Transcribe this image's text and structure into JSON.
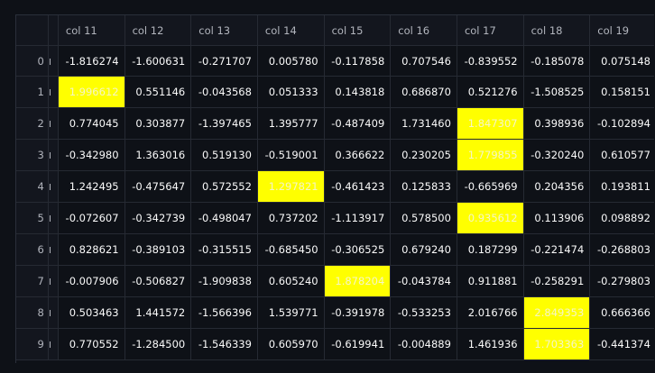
{
  "grid": {
    "columns": [
      "col 11",
      "col 12",
      "col 13",
      "col 14",
      "col 15",
      "col 16",
      "col 17",
      "col 18",
      "col 19"
    ],
    "highlight_color": "#ffff00",
    "rows": [
      {
        "index": "0",
        "cells": [
          "-1.816274",
          "-1.600631",
          "-0.271707",
          "0.005780",
          "-0.117858",
          "0.707546",
          "-0.839552",
          "-0.185078",
          "0.075148"
        ],
        "highlight_col": -1
      },
      {
        "index": "1",
        "cells": [
          "1.996612",
          "0.551146",
          "-0.043568",
          "0.051333",
          "0.143818",
          "0.686870",
          "0.521276",
          "-1.508525",
          "0.158151"
        ],
        "highlight_col": 0
      },
      {
        "index": "2",
        "cells": [
          "0.774045",
          "0.303877",
          "-1.397465",
          "1.395777",
          "-0.487409",
          "1.731460",
          "1.847307",
          "0.398936",
          "-0.102894"
        ],
        "highlight_col": 6
      },
      {
        "index": "3",
        "cells": [
          "-0.342980",
          "1.363016",
          "0.519130",
          "-0.519001",
          "0.366622",
          "0.230205",
          "1.779855",
          "-0.320240",
          "0.610577"
        ],
        "highlight_col": 6
      },
      {
        "index": "4",
        "cells": [
          "1.242495",
          "-0.475647",
          "0.572552",
          "1.297821",
          "-0.461423",
          "0.125833",
          "-0.665969",
          "0.204356",
          "0.193811"
        ],
        "highlight_col": 3
      },
      {
        "index": "5",
        "cells": [
          "-0.072607",
          "-0.342739",
          "-0.498047",
          "0.737202",
          "-1.113917",
          "0.578500",
          "0.935612",
          "0.113906",
          "0.098892"
        ],
        "highlight_col": 6
      },
      {
        "index": "6",
        "cells": [
          "0.828621",
          "-0.389103",
          "-0.315515",
          "-0.685450",
          "-0.306525",
          "0.679240",
          "0.187299",
          "-0.221474",
          "-0.268803"
        ],
        "highlight_col": -1
      },
      {
        "index": "7",
        "cells": [
          "-0.007906",
          "-0.506827",
          "-1.909838",
          "0.605240",
          "1.878204",
          "-0.043784",
          "0.911881",
          "-0.258291",
          "-0.279803"
        ],
        "highlight_col": 4
      },
      {
        "index": "8",
        "cells": [
          "0.503463",
          "1.441572",
          "-1.566396",
          "1.539771",
          "-0.391978",
          "-0.533253",
          "2.016766",
          "2.849353",
          "0.666366"
        ],
        "highlight_col": 7
      },
      {
        "index": "9",
        "cells": [
          "0.770552",
          "-1.284500",
          "-1.546339",
          "0.605970",
          "-0.619941",
          "-0.004889",
          "1.461936",
          "1.703363",
          "-0.441374"
        ],
        "highlight_col": 7
      }
    ]
  }
}
